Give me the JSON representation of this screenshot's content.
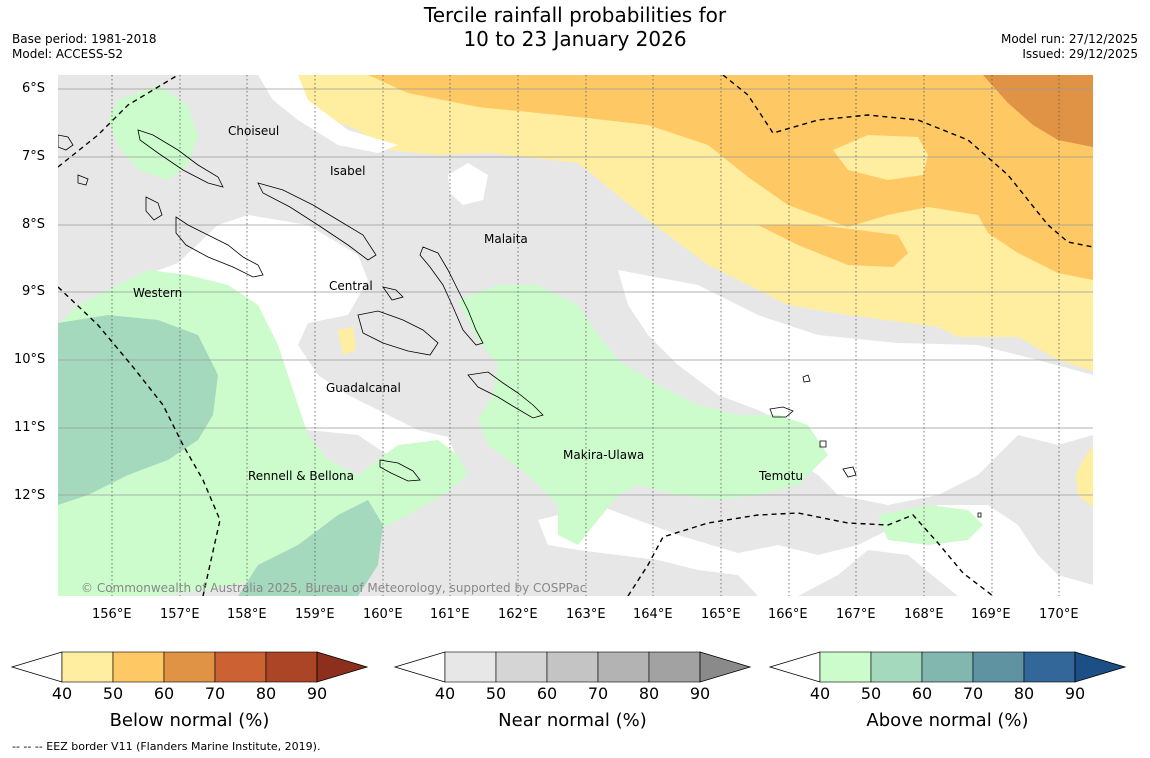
{
  "header": {
    "title_line1": "Tercile rainfall probabilities for",
    "title_line2": "10 to 23 January 2026",
    "base_period": "Base period: 1981-2018",
    "model": "Model: ACCESS-S2",
    "model_run": "Model run: 27/12/2025",
    "issued": "Issued: 29/12/2025"
  },
  "map": {
    "lat_labels": [
      "6°S",
      "7°S",
      "8°S",
      "9°S",
      "10°S",
      "11°S",
      "12°S"
    ],
    "lon_labels": [
      "156°E",
      "157°E",
      "158°E",
      "159°E",
      "160°E",
      "161°E",
      "162°E",
      "163°E",
      "164°E",
      "165°E",
      "166°E",
      "167°E",
      "168°E",
      "169°E",
      "170°E"
    ],
    "place_labels": {
      "choiseul": "Choiseul",
      "isabel": "Isabel",
      "malaita": "Malaita",
      "central": "Central",
      "western": "Western",
      "guadalcanal": "Guadalcanal",
      "makira": "Makira-Ulawa",
      "rennell": "Rennell & Bellona",
      "temotu": "Temotu"
    },
    "copyright": "© Commonwealth of Australia 2025, Bureau of Meteorology, supported by COSPPac"
  },
  "colorbars": [
    {
      "title": "Below normal (%)",
      "ticks": [
        "40",
        "50",
        "60",
        "70",
        "80",
        "90"
      ],
      "colors": [
        "#ffeda0",
        "#fec965",
        "#e09345",
        "#cc6233",
        "#ac4526",
        "#8c2f1c"
      ]
    },
    {
      "title": "Near normal (%)",
      "ticks": [
        "40",
        "50",
        "60",
        "70",
        "80",
        "90"
      ],
      "colors": [
        "#e7e7e7",
        "#d5d5d5",
        "#c4c4c4",
        "#b3b3b3",
        "#a2a2a2",
        "#8a8a8a"
      ]
    },
    {
      "title": "Above normal (%)",
      "ticks": [
        "40",
        "50",
        "60",
        "70",
        "80",
        "90"
      ],
      "colors": [
        "#ccfccc",
        "#a5d9be",
        "#82b7b0",
        "#5f93a2",
        "#336699",
        "#1b4f86"
      ]
    }
  ],
  "footer": {
    "eez_note": "--  --  -- EEZ border V11 (Flanders Marine Institute, 2019)."
  }
}
